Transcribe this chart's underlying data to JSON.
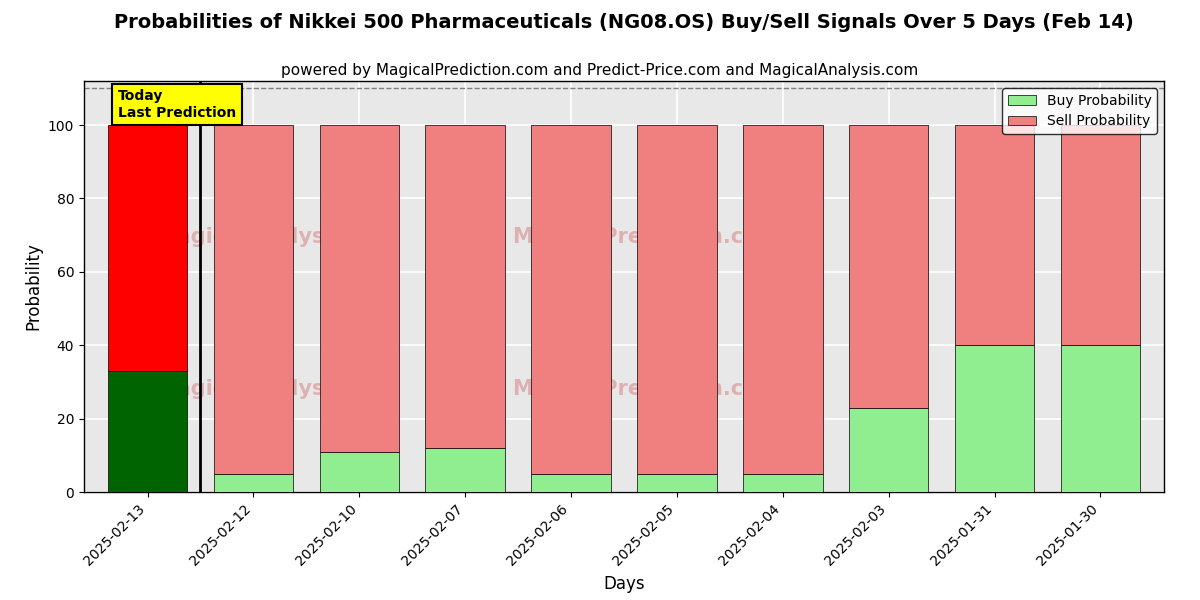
{
  "title": "Probabilities of Nikkei 500 Pharmaceuticals (NG08.OS) Buy/Sell Signals Over 5 Days (Feb 14)",
  "subtitle": "powered by MagicalPrediction.com and Predict-Price.com and MagicalAnalysis.com",
  "xlabel": "Days",
  "ylabel": "Probability",
  "categories": [
    "2025-02-13",
    "2025-02-12",
    "2025-02-10",
    "2025-02-07",
    "2025-02-06",
    "2025-02-05",
    "2025-02-04",
    "2025-02-03",
    "2025-01-31",
    "2025-01-30"
  ],
  "buy_values": [
    33,
    5,
    11,
    12,
    5,
    5,
    5,
    23,
    40,
    40
  ],
  "sell_values": [
    67,
    95,
    89,
    88,
    95,
    95,
    95,
    77,
    60,
    60
  ],
  "buy_colors": [
    "#006400",
    "#90EE90",
    "#90EE90",
    "#90EE90",
    "#90EE90",
    "#90EE90",
    "#90EE90",
    "#90EE90",
    "#90EE90",
    "#90EE90"
  ],
  "sell_colors": [
    "#FF0000",
    "#F08080",
    "#F08080",
    "#F08080",
    "#F08080",
    "#F08080",
    "#F08080",
    "#F08080",
    "#F08080",
    "#F08080"
  ],
  "today_box_color": "#FFFF00",
  "today_text": "Today\nLast Prediction",
  "legend_buy_color": "#90EE90",
  "legend_sell_color": "#F08080",
  "ylim": [
    0,
    112
  ],
  "yticks": [
    0,
    20,
    40,
    60,
    80,
    100
  ],
  "dashed_line_y": 110,
  "background_color": "#e8e8e8",
  "grid_color": "#ffffff",
  "bar_width": 0.75,
  "title_fontsize": 14,
  "subtitle_fontsize": 11,
  "axis_label_fontsize": 12,
  "tick_fontsize": 10
}
